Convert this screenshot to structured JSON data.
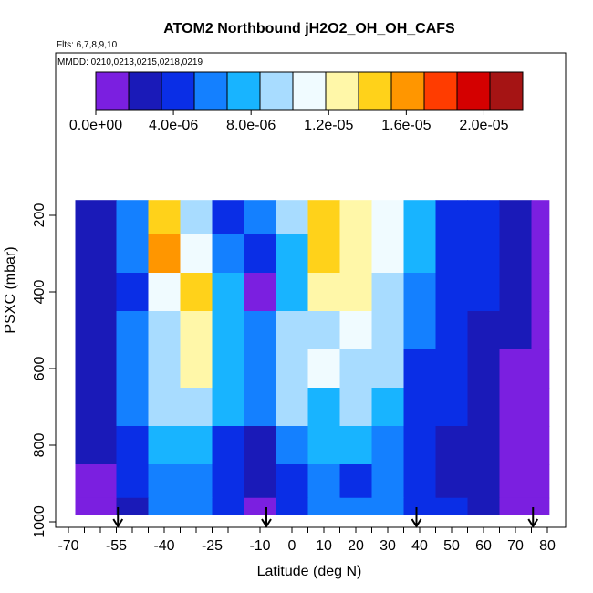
{
  "chart_data": {
    "type": "heatmap",
    "title": "ATOM2 Northbound jH2O2_OH_OH_CAFS",
    "flights_note": "Flts: 6,7,8,9,10",
    "dates_note": "MMDD: 0210,0213,0215,0218,0219",
    "xlabel": "Latitude (deg N)",
    "ylabel": "PSXC (mbar)",
    "xlim": [
      -70,
      85
    ],
    "ylim": [
      1000,
      130
    ],
    "x_ticks": [
      -70,
      -55,
      -40,
      -25,
      -10,
      0,
      10,
      20,
      30,
      40,
      50,
      60,
      70,
      80
    ],
    "y_ticks": [
      200,
      400,
      600,
      800,
      1000
    ],
    "x_minor_step": 5,
    "colorbar": {
      "min": 0,
      "max": 2.2e-05,
      "tick_values": [
        0,
        4e-06,
        8e-06,
        1.2e-05,
        1.6e-05,
        2e-05
      ],
      "tick_labels": [
        "0.0e+00",
        "4.0e-06",
        "8.0e-06",
        "1.2e-05",
        "1.6e-05",
        "2.0e-05"
      ],
      "colors": [
        "#7b1fe0",
        "#1a1ab8",
        "#0a2ee6",
        "#1480ff",
        "#18b4ff",
        "#a8dcff",
        "#f0fbff",
        "#fff7a8",
        "#ffd21a",
        "#ff9600",
        "#ff3c00",
        "#d40000",
        "#a51414"
      ]
    },
    "latitudes": [
      -60,
      -50,
      -40,
      -30,
      -20,
      -10,
      0,
      10,
      20,
      30,
      40,
      50,
      60,
      70,
      80
    ],
    "pressure_levels": [
      200,
      300,
      400,
      500,
      600,
      700,
      800,
      900,
      975
    ],
    "values": [
      [
        3e-06,
        6e-06,
        1.5e-05,
        9e-06,
        4.5e-06,
        6e-06,
        9e-06,
        1.5e-05,
        1.3e-05,
        1.1e-05,
        7e-06,
        5e-06,
        3.5e-06,
        2e-06,
        1e-06
      ],
      [
        2.5e-06,
        5.5e-06,
        1.6e-05,
        1.1e-05,
        5.5e-06,
        4e-06,
        7e-06,
        1.4e-05,
        1.2e-05,
        1.1e-05,
        7e-06,
        5e-06,
        4e-06,
        2.5e-06,
        1e-06
      ],
      [
        2e-06,
        5e-06,
        1.1e-05,
        1.4e-05,
        7e-06,
        1e-06,
        8e-06,
        1.2e-05,
        1.25e-05,
        1e-05,
        6e-06,
        4.5e-06,
        3.5e-06,
        2e-06,
        1e-06
      ],
      [
        2.5e-06,
        6e-06,
        9e-06,
        1.3e-05,
        8e-06,
        6e-06,
        1e-05,
        1e-05,
        1.1e-05,
        9e-06,
        6e-06,
        4e-06,
        3e-06,
        2e-06,
        1e-06
      ],
      [
        2e-06,
        6e-06,
        9e-06,
        1.2e-05,
        7e-06,
        6e-06,
        9e-06,
        1.1e-05,
        9.5e-06,
        9e-06,
        5e-06,
        4e-06,
        3e-06,
        1.5e-06,
        8e-07
      ],
      [
        2.5e-06,
        6e-06,
        9.5e-06,
        9e-06,
        8e-06,
        6e-06,
        9e-06,
        8e-06,
        8.5e-06,
        7.5e-06,
        4e-06,
        3.5e-06,
        2.5e-06,
        1.5e-06,
        8e-07
      ],
      [
        2e-06,
        4.5e-06,
        7e-06,
        8e-06,
        3.5e-06,
        3e-06,
        6e-06,
        8e-06,
        7e-06,
        6e-06,
        4e-06,
        3e-06,
        2e-06,
        1.5e-06,
        8e-07
      ],
      [
        1.5e-06,
        4e-06,
        6e-06,
        6.5e-06,
        5e-06,
        3e-06,
        5e-06,
        6e-06,
        5e-06,
        6e-06,
        3.5e-06,
        2.5e-06,
        2e-06,
        1.2e-06,
        7e-07
      ],
      [
        1e-06,
        3e-06,
        5.5e-06,
        6e-06,
        5e-06,
        1.5e-06,
        5e-06,
        6e-06,
        6e-06,
        6.5e-06,
        4e-06,
        3.5e-06,
        2.5e-06,
        1.5e-06,
        8e-07
      ]
    ],
    "flight_profile_markers_lat": [
      -54.5,
      -8,
      39,
      75.5
    ]
  }
}
